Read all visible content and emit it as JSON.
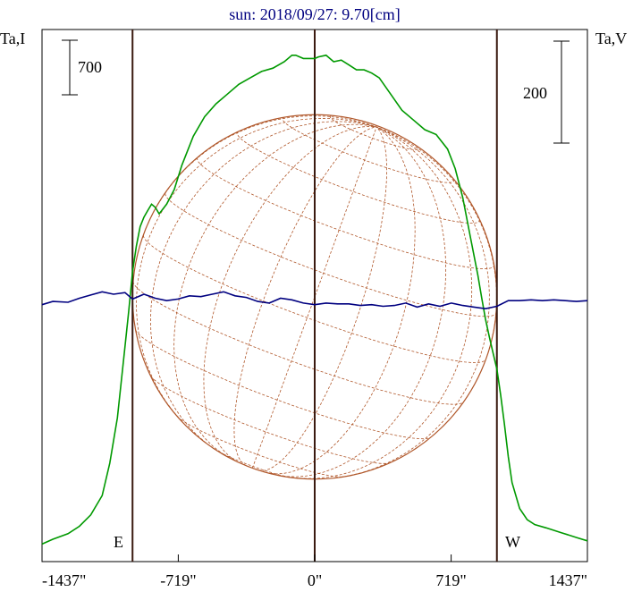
{
  "chart_data": {
    "type": "line",
    "title": "sun: 2018/09/27: 9.70[cm]",
    "left_axis_label": "Ta,I",
    "right_axis_label": "Ta,V",
    "x_ticks": [
      {
        "value": -1437,
        "label": "-1437\""
      },
      {
        "value": -719,
        "label": "-719\""
      },
      {
        "value": 0,
        "label": "0\""
      },
      {
        "value": 719,
        "label": "719\""
      },
      {
        "value": 1437,
        "label": "1437\""
      }
    ],
    "xlim": [
      -1437,
      1437
    ],
    "scale_bar_left": {
      "label": "700",
      "value": 700
    },
    "scale_bar_right": {
      "label": "200",
      "value": 200
    },
    "limb_labels": {
      "east": "E",
      "west": "W"
    },
    "limb_x": [
      -960,
      960
    ],
    "center_x": 0,
    "solar_disk": {
      "radius_arcsec": 960,
      "center_x": 0,
      "center_y": 0
    },
    "series": [
      {
        "name": "",
        "color": "#009900",
        "x": [
          -1437,
          -1380,
          -1300,
          -1240,
          -1180,
          -1120,
          -1080,
          -1040,
          -1000,
          -980,
          -960,
          -940,
          -920,
          -900,
          -880,
          -860,
          -840,
          -820,
          -800,
          -780,
          -740,
          -700,
          -640,
          -580,
          -520,
          -460,
          -400,
          -340,
          -280,
          -220,
          -160,
          -120,
          -100,
          -60,
          -20,
          0,
          20,
          60,
          100,
          140,
          180,
          220,
          260,
          300,
          340,
          400,
          460,
          520,
          580,
          640,
          700,
          740,
          780,
          820,
          860,
          880,
          900,
          920,
          940,
          960,
          980,
          1000,
          1020,
          1040,
          1080,
          1120,
          1160,
          1220,
          1300,
          1380,
          1437
        ],
        "y": [
          10,
          25,
          42,
          65,
          100,
          160,
          260,
          400,
          620,
          730,
          850,
          930,
          990,
          1020,
          1040,
          1060,
          1050,
          1030,
          1045,
          1060,
          1105,
          1180,
          1270,
          1330,
          1370,
          1400,
          1430,
          1450,
          1470,
          1480,
          1500,
          1520,
          1520,
          1510,
          1510,
          1510,
          1515,
          1520,
          1500,
          1505,
          1490,
          1475,
          1475,
          1465,
          1450,
          1400,
          1350,
          1320,
          1290,
          1275,
          1230,
          1170,
          1080,
          960,
          840,
          770,
          705,
          650,
          600,
          550,
          470,
          380,
          280,
          200,
          120,
          85,
          70,
          60,
          45,
          30,
          20
        ]
      },
      {
        "name": "",
        "color": "#000080",
        "x": [
          -1437,
          -1380,
          -1300,
          -1240,
          -1180,
          -1120,
          -1060,
          -1000,
          -960,
          -900,
          -840,
          -780,
          -720,
          -660,
          -600,
          -540,
          -480,
          -420,
          -360,
          -300,
          -240,
          -180,
          -120,
          -60,
          0,
          60,
          120,
          180,
          240,
          300,
          360,
          420,
          480,
          540,
          600,
          660,
          720,
          780,
          840,
          900,
          960,
          1020,
          1080,
          1140,
          1200,
          1260,
          1320,
          1380,
          1437
        ],
        "y": [
          -3,
          1,
          0,
          5,
          9,
          13,
          10,
          12,
          4,
          10,
          5,
          2,
          4,
          8,
          7,
          10,
          13,
          8,
          6,
          1,
          -1,
          5,
          3,
          -1,
          -3,
          -1,
          -2,
          -2,
          -4,
          -3,
          -5,
          -4,
          -1,
          -6,
          -2,
          -5,
          -1,
          -4,
          -6,
          -8,
          -5,
          2,
          2,
          3,
          2,
          3,
          2,
          1,
          2
        ]
      }
    ],
    "grid": false,
    "legend": "none"
  }
}
